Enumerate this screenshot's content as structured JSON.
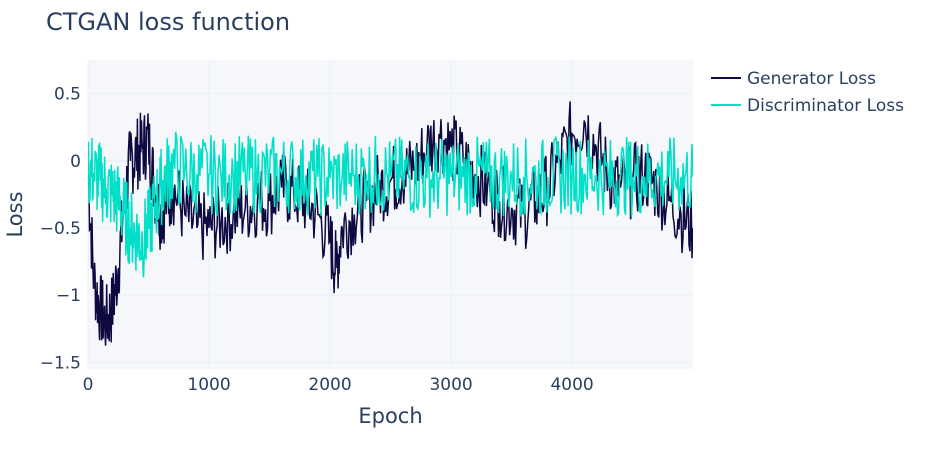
{
  "chart_data": {
    "type": "line",
    "title": "CTGAN loss function",
    "xlabel": "Epoch",
    "ylabel": "Loss",
    "xlim": [
      0,
      4999
    ],
    "ylim": [
      -1.55,
      0.75
    ],
    "x_ticks": [
      0,
      1000,
      2000,
      3000,
      4000
    ],
    "x_tick_labels": [
      "0",
      "1000",
      "2000",
      "3000",
      "4000"
    ],
    "y_ticks": [
      -1.5,
      -1,
      -0.5,
      0,
      0.5
    ],
    "y_tick_labels": [
      "−1.5",
      "−1",
      "−0.5",
      "0",
      "0.5"
    ],
    "grid": true,
    "legend_position": "top-right (outside plot)",
    "series": [
      {
        "name": "Generator Loss",
        "color": "#0d0a42",
        "x": [
          0,
          50,
          100,
          150,
          200,
          250,
          300,
          350,
          400,
          450,
          500,
          550,
          600,
          650,
          700,
          800,
          900,
          1000,
          1100,
          1200,
          1300,
          1400,
          1500,
          1600,
          1700,
          1800,
          1900,
          2000,
          2050,
          2100,
          2200,
          2300,
          2400,
          2500,
          2600,
          2700,
          2800,
          2900,
          3000,
          3100,
          3200,
          3300,
          3400,
          3500,
          3600,
          3700,
          3800,
          3900,
          4000,
          4100,
          4200,
          4300,
          4400,
          4500,
          4600,
          4700,
          4800,
          4900,
          4999
        ],
        "values": [
          -0.1,
          -0.9,
          -1.1,
          -1.2,
          -1.1,
          -0.8,
          -0.3,
          0.0,
          0.05,
          0.1,
          0.15,
          -0.2,
          -0.4,
          -0.3,
          -0.2,
          -0.4,
          -0.5,
          -0.5,
          -0.45,
          -0.4,
          -0.35,
          -0.3,
          -0.3,
          -0.2,
          -0.25,
          -0.3,
          -0.4,
          -0.6,
          -0.8,
          -0.5,
          -0.4,
          -0.3,
          -0.2,
          -0.15,
          -0.1,
          -0.05,
          0.1,
          0.2,
          0.1,
          0.0,
          -0.1,
          -0.2,
          -0.3,
          -0.35,
          -0.4,
          -0.3,
          -0.2,
          0.0,
          0.2,
          0.3,
          0.1,
          -0.1,
          -0.2,
          -0.15,
          -0.1,
          -0.2,
          -0.3,
          -0.4,
          -0.5
        ]
      },
      {
        "name": "Discriminator Loss",
        "color": "#00e0c8",
        "x": [
          0,
          50,
          100,
          150,
          200,
          250,
          300,
          350,
          400,
          450,
          500,
          550,
          600,
          650,
          700,
          800,
          900,
          1000,
          1100,
          1200,
          1300,
          1400,
          1500,
          1600,
          1700,
          1800,
          1900,
          2000,
          2100,
          2200,
          2300,
          2400,
          2500,
          2600,
          2700,
          2800,
          2900,
          3000,
          3100,
          3200,
          3300,
          3400,
          3500,
          3600,
          3700,
          3800,
          3900,
          4000,
          4100,
          4200,
          4300,
          4400,
          4500,
          4600,
          4700,
          4800,
          4900,
          4999
        ],
        "values": [
          -0.05,
          -0.1,
          -0.15,
          -0.2,
          -0.25,
          -0.3,
          -0.4,
          -0.5,
          -0.55,
          -0.6,
          -0.5,
          -0.35,
          -0.2,
          -0.1,
          -0.05,
          -0.08,
          -0.1,
          -0.1,
          -0.12,
          -0.1,
          -0.11,
          -0.1,
          -0.1,
          -0.09,
          -0.1,
          -0.11,
          -0.12,
          -0.13,
          -0.12,
          -0.11,
          -0.1,
          -0.1,
          -0.12,
          -0.11,
          -0.12,
          -0.13,
          -0.12,
          -0.12,
          -0.12,
          -0.11,
          -0.12,
          -0.13,
          -0.12,
          -0.12,
          -0.13,
          -0.12,
          -0.11,
          -0.1,
          -0.1,
          -0.11,
          -0.12,
          -0.11,
          -0.12,
          -0.12,
          -0.11,
          -0.12,
          -0.12,
          -0.12
        ]
      }
    ]
  }
}
